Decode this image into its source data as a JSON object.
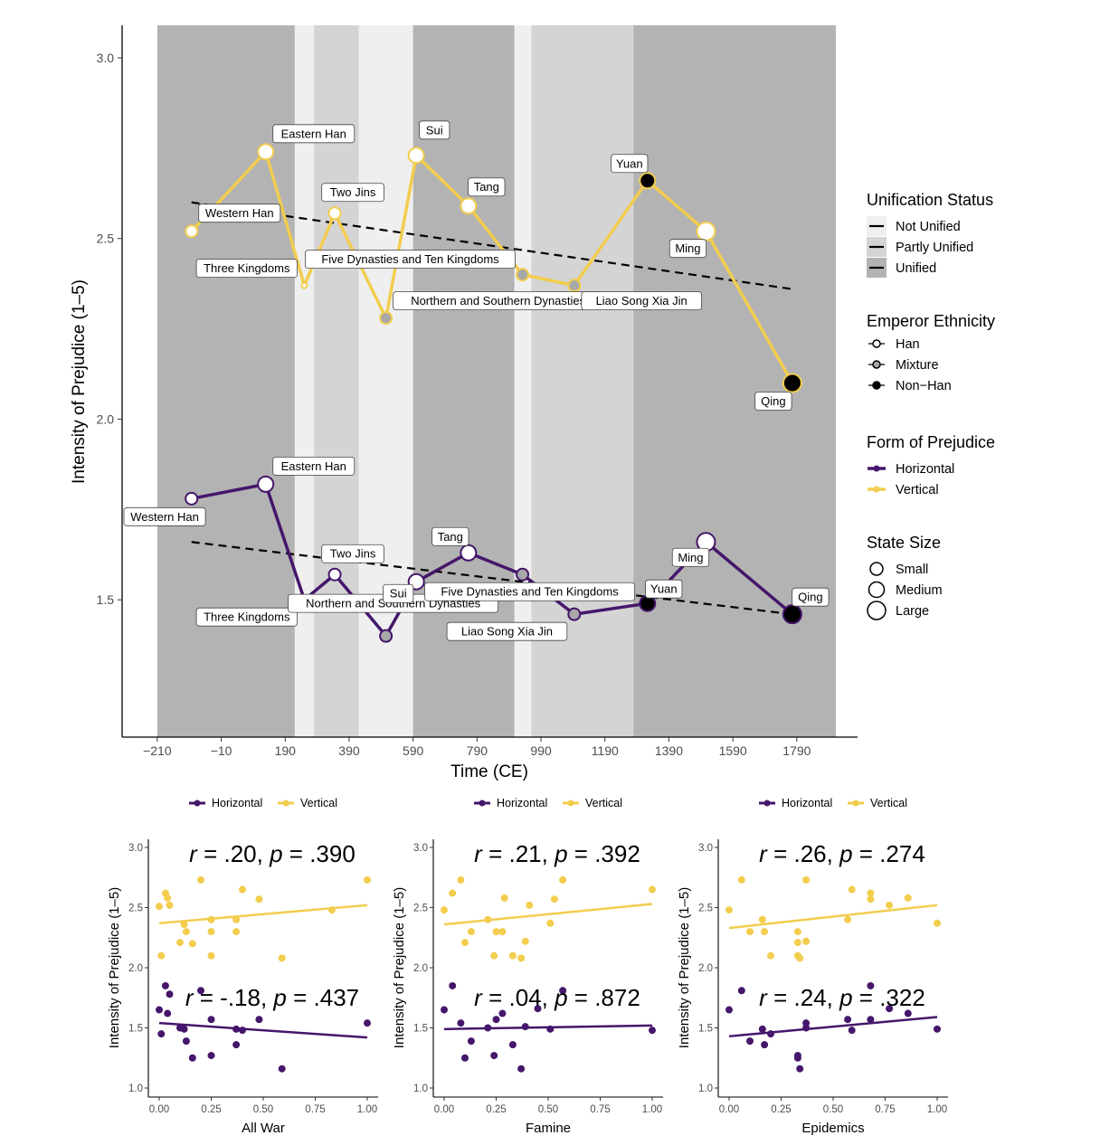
{
  "main_chart": {
    "ylabel": "Intensity of Prejudice (1–5)",
    "xlabel": "Time (CE)",
    "colors": {
      "horizontal": "#45166b",
      "vertical": "#f2cd4e",
      "unified": "#b3b3b3",
      "partly": "#d4d4d4",
      "not_unified": "#efefef"
    },
    "legend": {
      "unification": {
        "title": "Unification Status",
        "items": [
          "Not Unified",
          "Partly Unified",
          "Unified"
        ]
      },
      "ethnicity": {
        "title": "Emperor Ethnicity",
        "items": [
          "Han",
          "Mixture",
          "Non−Han"
        ]
      },
      "form": {
        "title": "Form of Prejudice",
        "items": [
          "Horizontal",
          "Vertical"
        ]
      },
      "size": {
        "title": "State Size",
        "items": [
          "Small",
          "Medium",
          "Large"
        ]
      }
    }
  },
  "chart_data": [
    {
      "type": "line",
      "x_ticks": [
        "−210",
        "−10",
        "190",
        "390",
        "590",
        "790",
        "990",
        "1190",
        "1390",
        "1590",
        "1790"
      ],
      "y_ticks": [
        "1.5",
        "2.0",
        "2.5",
        "3.0"
      ],
      "xlim": [
        -320,
        1980
      ],
      "ylim": [
        1.12,
        3.09
      ],
      "unification_bands": [
        {
          "from": -210,
          "to": 220,
          "status": "unified"
        },
        {
          "from": 220,
          "to": 280,
          "status": "not_unified"
        },
        {
          "from": 280,
          "to": 420,
          "status": "partly"
        },
        {
          "from": 420,
          "to": 590,
          "status": "not_unified"
        },
        {
          "from": 590,
          "to": 907,
          "status": "unified"
        },
        {
          "from": 907,
          "to": 960,
          "status": "not_unified"
        },
        {
          "from": 960,
          "to": 1279,
          "status": "partly"
        },
        {
          "from": 1279,
          "to": 1912,
          "status": "unified"
        }
      ],
      "series": [
        {
          "name": "Vertical",
          "points": [
            {
              "x": -103,
              "y": 2.52,
              "label": "Western Han",
              "eth": "han",
              "size": "medium"
            },
            {
              "x": 129,
              "y": 2.74,
              "label": "Eastern Han",
              "eth": "han",
              "size": "large"
            },
            {
              "x": 250,
              "y": 2.37,
              "label": "Three Kingdoms",
              "eth": "han",
              "size": "small"
            },
            {
              "x": 345,
              "y": 2.57,
              "label": "Two Jins",
              "eth": "han",
              "size": "medium"
            },
            {
              "x": 505,
              "y": 2.28,
              "label": "Northern and Southern Dynasties",
              "eth": "mix",
              "size": "medium"
            },
            {
              "x": 600,
              "y": 2.73,
              "label": "Sui",
              "eth": "han",
              "size": "large"
            },
            {
              "x": 763,
              "y": 2.59,
              "label": "Tang",
              "eth": "han",
              "size": "large"
            },
            {
              "x": 932,
              "y": 2.4,
              "label": "Five Dynasties and Ten Kingdoms",
              "eth": "mix",
              "size": "medium"
            },
            {
              "x": 1094,
              "y": 2.37,
              "label": "Liao Song Xia Jin",
              "eth": "mix",
              "size": "medium"
            },
            {
              "x": 1323,
              "y": 2.66,
              "label": "Yuan",
              "eth": "nonhan",
              "size": "large"
            },
            {
              "x": 1506,
              "y": 2.52,
              "label": "Ming",
              "eth": "han",
              "size": "xlarge"
            },
            {
              "x": 1776,
              "y": 2.1,
              "label": "Qing",
              "eth": "nonhan",
              "size": "xlarge"
            }
          ],
          "trend": [
            [
              -103,
              2.6
            ],
            [
              1776,
              2.36
            ]
          ]
        },
        {
          "name": "Horizontal",
          "points": [
            {
              "x": -103,
              "y": 1.78,
              "label": "Western Han",
              "eth": "han",
              "size": "medium"
            },
            {
              "x": 129,
              "y": 1.82,
              "label": "Eastern Han",
              "eth": "han",
              "size": "large"
            },
            {
              "x": 250,
              "y": 1.5,
              "label": "Three Kingdoms",
              "eth": "han",
              "size": "small"
            },
            {
              "x": 345,
              "y": 1.57,
              "label": "Two Jins",
              "eth": "han",
              "size": "medium"
            },
            {
              "x": 505,
              "y": 1.4,
              "label": "Northern and Southern Dynasties",
              "eth": "mix",
              "size": "medium"
            },
            {
              "x": 600,
              "y": 1.55,
              "label": "Sui",
              "eth": "han",
              "size": "large"
            },
            {
              "x": 763,
              "y": 1.63,
              "label": "Tang",
              "eth": "han",
              "size": "large"
            },
            {
              "x": 932,
              "y": 1.57,
              "label": "Five Dynasties and Ten Kingdoms",
              "eth": "mix",
              "size": "medium"
            },
            {
              "x": 1094,
              "y": 1.46,
              "label": "Liao Song Xia Jin",
              "eth": "mix",
              "size": "medium"
            },
            {
              "x": 1323,
              "y": 1.49,
              "label": "Yuan",
              "eth": "nonhan",
              "size": "large"
            },
            {
              "x": 1506,
              "y": 1.66,
              "label": "Ming",
              "eth": "han",
              "size": "xlarge"
            },
            {
              "x": 1776,
              "y": 1.46,
              "label": "Qing",
              "eth": "nonhan",
              "size": "xlarge"
            }
          ],
          "trend": [
            [
              -103,
              1.66
            ],
            [
              1776,
              1.46
            ]
          ]
        }
      ]
    },
    {
      "type": "scatter",
      "xlabel": "All War",
      "ylabel": "Intensity of Prejudice (1–5)",
      "legend": [
        "Horizontal",
        "Vertical"
      ],
      "annotation_v": {
        "r": ".20",
        "p": ".390"
      },
      "annotation_h": {
        "r": "-.18",
        "p": ".437"
      },
      "vertical": [
        [
          0.0,
          2.51
        ],
        [
          0.01,
          2.1
        ],
        [
          0.03,
          2.62
        ],
        [
          0.04,
          2.58
        ],
        [
          0.05,
          2.52
        ],
        [
          0.1,
          2.21
        ],
        [
          0.12,
          2.36
        ],
        [
          0.13,
          2.3
        ],
        [
          0.16,
          2.2
        ],
        [
          0.2,
          2.73
        ],
        [
          0.25,
          2.4
        ],
        [
          0.25,
          2.3
        ],
        [
          0.25,
          2.1
        ],
        [
          0.37,
          2.4
        ],
        [
          0.37,
          2.3
        ],
        [
          0.4,
          2.65
        ],
        [
          0.48,
          2.57
        ],
        [
          0.59,
          2.08
        ],
        [
          0.83,
          2.48
        ],
        [
          1.0,
          2.73
        ]
      ],
      "horizontal": [
        [
          0.0,
          1.65
        ],
        [
          0.01,
          1.45
        ],
        [
          0.03,
          1.85
        ],
        [
          0.04,
          1.62
        ],
        [
          0.05,
          1.78
        ],
        [
          0.1,
          1.5
        ],
        [
          0.12,
          1.49
        ],
        [
          0.13,
          1.39
        ],
        [
          0.16,
          1.25
        ],
        [
          0.2,
          1.81
        ],
        [
          0.25,
          1.57
        ],
        [
          0.25,
          1.27
        ],
        [
          0.37,
          1.49
        ],
        [
          0.37,
          1.36
        ],
        [
          0.4,
          1.48
        ],
        [
          0.48,
          1.57
        ],
        [
          0.59,
          1.16
        ],
        [
          1.0,
          1.54
        ]
      ],
      "trend_v": [
        [
          0.0,
          2.37
        ],
        [
          1.0,
          2.52
        ]
      ],
      "trend_h": [
        [
          0.0,
          1.54
        ],
        [
          1.0,
          1.42
        ]
      ],
      "x_ticks": [
        "0.00",
        "0.25",
        "0.50",
        "0.75",
        "1.00"
      ],
      "y_ticks": [
        "1.0",
        "1.5",
        "2.0",
        "2.5",
        "3.0"
      ]
    },
    {
      "type": "scatter",
      "xlabel": "Famine",
      "ylabel": "Intensity of Prejudice (1–5)",
      "legend": [
        "Horizontal",
        "Vertical"
      ],
      "annotation_v": {
        "r": ".21",
        "p": ".392"
      },
      "annotation_h": {
        "r": ".04",
        "p": ".872"
      },
      "vertical": [
        [
          0.0,
          2.48
        ],
        [
          0.04,
          2.62
        ],
        [
          0.08,
          2.73
        ],
        [
          0.1,
          2.21
        ],
        [
          0.13,
          2.3
        ],
        [
          0.21,
          2.4
        ],
        [
          0.24,
          2.1
        ],
        [
          0.25,
          2.3
        ],
        [
          0.28,
          2.3
        ],
        [
          0.29,
          2.58
        ],
        [
          0.33,
          2.1
        ],
        [
          0.37,
          2.08
        ],
        [
          0.39,
          2.22
        ],
        [
          0.41,
          2.52
        ],
        [
          0.51,
          2.37
        ],
        [
          0.53,
          2.57
        ],
        [
          0.57,
          2.73
        ],
        [
          1.0,
          2.65
        ]
      ],
      "horizontal": [
        [
          0.0,
          1.65
        ],
        [
          0.04,
          1.85
        ],
        [
          0.08,
          1.54
        ],
        [
          0.1,
          1.25
        ],
        [
          0.13,
          1.39
        ],
        [
          0.21,
          1.5
        ],
        [
          0.24,
          1.27
        ],
        [
          0.25,
          1.57
        ],
        [
          0.28,
          1.62
        ],
        [
          0.33,
          1.36
        ],
        [
          0.37,
          1.16
        ],
        [
          0.39,
          1.51
        ],
        [
          0.45,
          1.66
        ],
        [
          0.51,
          1.49
        ],
        [
          0.57,
          1.81
        ],
        [
          1.0,
          1.48
        ]
      ],
      "trend_v": [
        [
          0.0,
          2.36
        ],
        [
          1.0,
          2.53
        ]
      ],
      "trend_h": [
        [
          0.0,
          1.49
        ],
        [
          1.0,
          1.52
        ]
      ],
      "x_ticks": [
        "0.00",
        "0.25",
        "0.50",
        "0.75",
        "1.00"
      ],
      "y_ticks": [
        "1.0",
        "1.5",
        "2.0",
        "2.5",
        "3.0"
      ]
    },
    {
      "type": "scatter",
      "xlabel": "Epidemics",
      "ylabel": "Intensity of Prejudice (1–5)",
      "legend": [
        "Horizontal",
        "Vertical"
      ],
      "annotation_v": {
        "r": ".26",
        "p": ".274"
      },
      "annotation_h": {
        "r": ".24",
        "p": ".322"
      },
      "vertical": [
        [
          0.0,
          2.48
        ],
        [
          0.06,
          2.73
        ],
        [
          0.1,
          2.3
        ],
        [
          0.16,
          2.4
        ],
        [
          0.17,
          2.3
        ],
        [
          0.2,
          2.1
        ],
        [
          0.33,
          2.3
        ],
        [
          0.33,
          2.21
        ],
        [
          0.33,
          2.1
        ],
        [
          0.34,
          2.08
        ],
        [
          0.37,
          2.22
        ],
        [
          0.37,
          2.73
        ],
        [
          0.57,
          2.4
        ],
        [
          0.59,
          2.65
        ],
        [
          0.68,
          2.62
        ],
        [
          0.68,
          2.57
        ],
        [
          0.77,
          2.52
        ],
        [
          0.86,
          2.58
        ],
        [
          1.0,
          2.37
        ]
      ],
      "horizontal": [
        [
          0.0,
          1.65
        ],
        [
          0.06,
          1.81
        ],
        [
          0.1,
          1.39
        ],
        [
          0.16,
          1.49
        ],
        [
          0.17,
          1.36
        ],
        [
          0.2,
          1.45
        ],
        [
          0.33,
          1.27
        ],
        [
          0.33,
          1.25
        ],
        [
          0.34,
          1.16
        ],
        [
          0.37,
          1.5
        ],
        [
          0.37,
          1.54
        ],
        [
          0.57,
          1.57
        ],
        [
          0.59,
          1.48
        ],
        [
          0.68,
          1.85
        ],
        [
          0.68,
          1.57
        ],
        [
          0.77,
          1.66
        ],
        [
          0.86,
          1.62
        ],
        [
          1.0,
          1.49
        ]
      ],
      "trend_v": [
        [
          0.0,
          2.33
        ],
        [
          1.0,
          2.52
        ]
      ],
      "trend_h": [
        [
          0.0,
          1.43
        ],
        [
          1.0,
          1.59
        ]
      ],
      "x_ticks": [
        "0.00",
        "0.25",
        "0.50",
        "0.75",
        "1.00"
      ],
      "y_ticks": [
        "1.0",
        "1.5",
        "2.0",
        "2.5",
        "3.0"
      ]
    }
  ]
}
